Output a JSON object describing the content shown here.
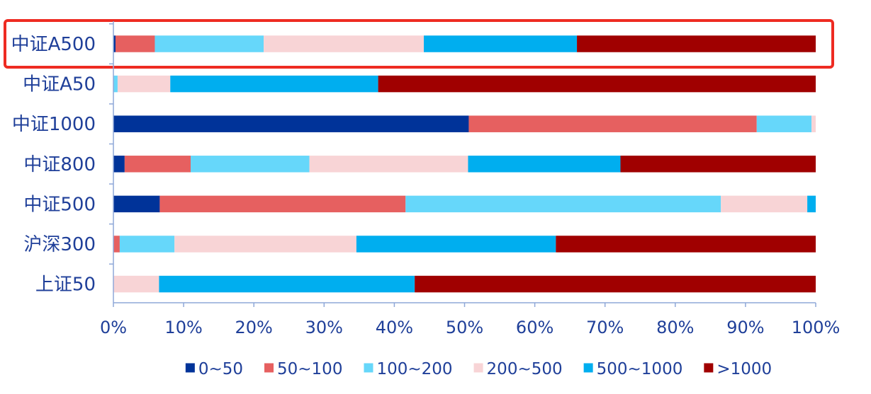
{
  "chart_data": {
    "type": "bar",
    "orientation": "horizontal",
    "stacked": true,
    "normalized": true,
    "title": "",
    "xlabel": "",
    "ylabel": "",
    "xlim": [
      0,
      100
    ],
    "x_ticks": [
      "0%",
      "10%",
      "20%",
      "30%",
      "40%",
      "50%",
      "60%",
      "70%",
      "80%",
      "90%",
      "100%"
    ],
    "grid": false,
    "legend_position": "bottom",
    "categories": [
      "中证A500",
      "中证A50",
      "中证1000",
      "中证800",
      "中证500",
      "沪深300",
      "上证50"
    ],
    "highlighted_category": "中证A500",
    "highlight_color": "#ee2b22",
    "series": [
      {
        "name": "0~50",
        "color": "#003399",
        "values": [
          0.3,
          0,
          50.6,
          1.6,
          6.6,
          0,
          0
        ]
      },
      {
        "name": "50~100",
        "color": "#e66060",
        "values": [
          5.6,
          0,
          41.0,
          9.4,
          35.0,
          0.9,
          0
        ]
      },
      {
        "name": "100~200",
        "color": "#66d7fa",
        "values": [
          15.5,
          0.6,
          7.8,
          16.9,
          44.9,
          7.8,
          0
        ]
      },
      {
        "name": "200~500",
        "color": "#f8d4d6",
        "values": [
          22.8,
          7.5,
          0.6,
          22.6,
          12.3,
          25.9,
          6.5
        ]
      },
      {
        "name": "500~1000",
        "color": "#00aeef",
        "values": [
          21.8,
          29.6,
          0,
          21.7,
          1.2,
          28.4,
          36.4
        ]
      },
      {
        "name": ">1000",
        "color": "#a00000",
        "values": [
          34.0,
          62.3,
          0,
          27.8,
          0,
          37.0,
          57.1
        ]
      }
    ]
  }
}
